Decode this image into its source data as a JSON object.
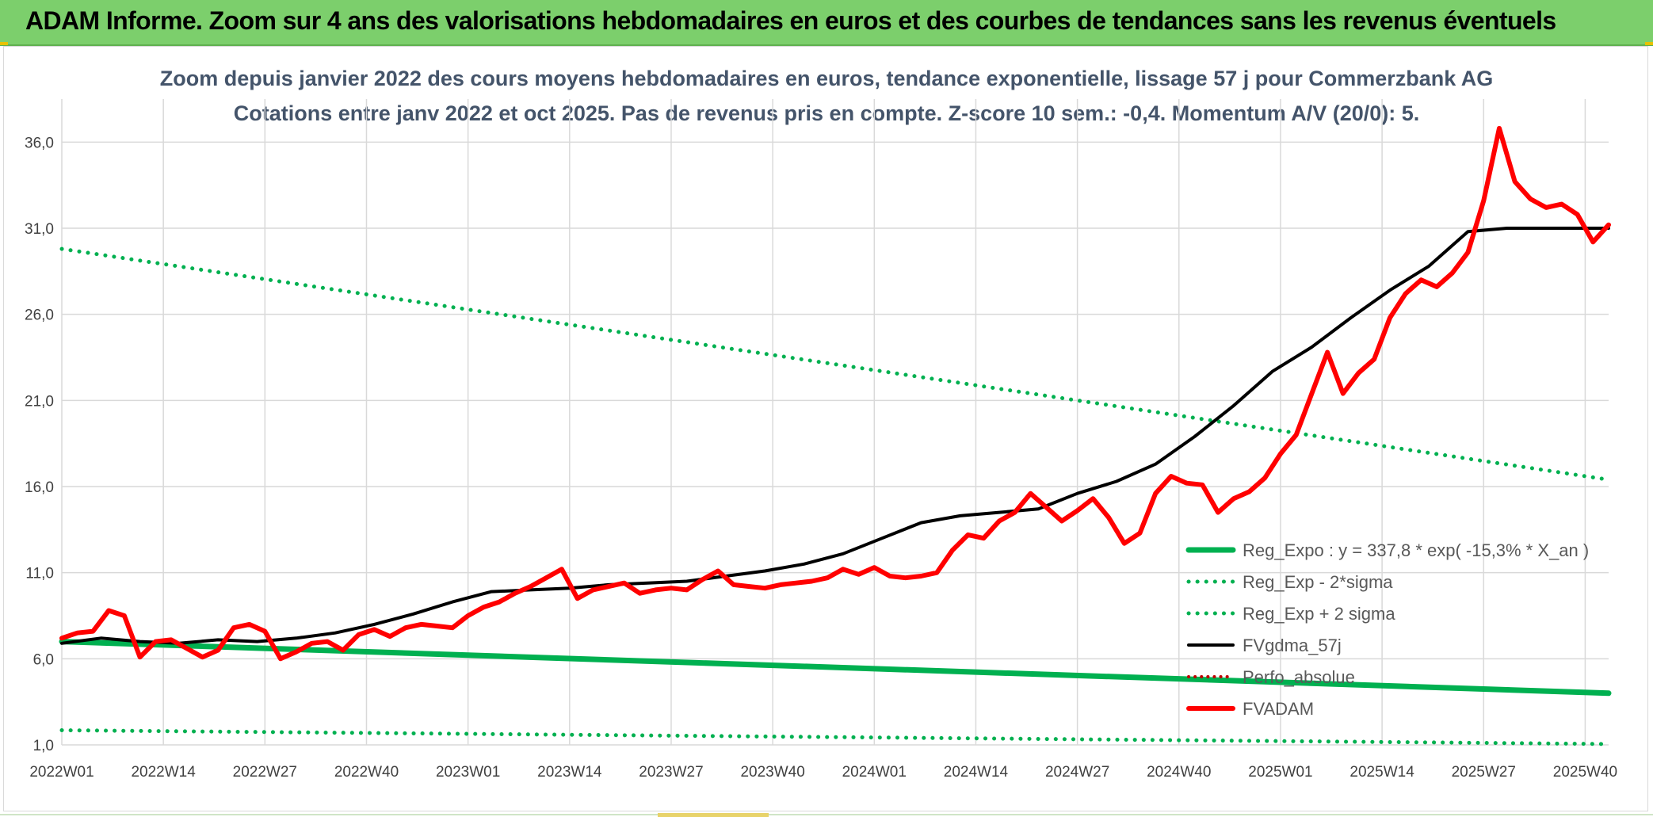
{
  "header": {
    "title": "ADAM Informe. Zoom sur 4 ans des valorisations hebdomadaires en euros et des courbes de tendances sans les revenus éventuels"
  },
  "chart_data": {
    "type": "line",
    "title": "Zoom depuis janvier 2022 des cours moyens hebdomadaires en euros, tendance exponentielle, lissage 57 j pour Commerzbank AG",
    "subtitle": "Cotations entre janv 2022 et oct 2025. Pas de revenus pris en compte. Z-score 10 sem.: -0,4. Momentum A/V (20/0): 5.",
    "xlabel": "",
    "ylabel": "",
    "ylim": [
      1.0,
      38.5
    ],
    "yticks": [
      "36,0",
      "31,0",
      "26,0",
      "21,0",
      "16,0",
      "11,0",
      "6,0",
      "1,0"
    ],
    "ytick_values": [
      36,
      31,
      26,
      21,
      16,
      11,
      6,
      1
    ],
    "xticks": [
      "2022W01",
      "2022W14",
      "2022W27",
      "2022W40",
      "2023W01",
      "2023W14",
      "2023W27",
      "2023W40",
      "2024W01",
      "2024W14",
      "2024W27",
      "2024W40",
      "2025W01",
      "2025W14",
      "2025W27",
      "2025W40"
    ],
    "week_count": 199,
    "grid": true,
    "legend_position": "right",
    "colors": {
      "reg_expo": "#00b050",
      "reg_sigma": "#00b050",
      "fvgdma": "#000000",
      "perfo": "#c00000",
      "fvadam": "#ff0000"
    },
    "series": [
      {
        "name": "Reg_Expo : y = 337,8 * exp( -15,3% *  X_an )",
        "style": "solid-thick",
        "x": [
          0,
          198
        ],
        "values": [
          7.0,
          4.0
        ]
      },
      {
        "name": "Reg_Exp - 2*sigma",
        "style": "dotted",
        "x": [
          0,
          198
        ],
        "values": [
          1.85,
          1.05
        ]
      },
      {
        "name": "Reg_Exp + 2 sigma",
        "style": "dotted",
        "x": [
          0,
          198
        ],
        "values": [
          29.8,
          16.4
        ]
      },
      {
        "name": "FVgdma_57j",
        "style": "solid",
        "x": [
          0,
          5,
          10,
          15,
          20,
          25,
          30,
          35,
          40,
          45,
          50,
          55,
          60,
          65,
          70,
          75,
          80,
          85,
          90,
          95,
          100,
          105,
          110,
          115,
          120,
          125,
          130,
          135,
          140,
          145,
          150,
          155,
          160,
          165,
          170,
          175,
          180,
          185,
          190,
          195,
          198
        ],
        "values": [
          6.9,
          7.2,
          7.0,
          6.9,
          7.1,
          7.0,
          7.2,
          7.5,
          8.0,
          8.6,
          9.3,
          9.9,
          10.0,
          10.1,
          10.3,
          10.4,
          10.5,
          10.8,
          11.1,
          11.5,
          12.1,
          13.0,
          13.9,
          14.3,
          14.5,
          14.7,
          15.6,
          16.3,
          17.3,
          18.9,
          20.7,
          22.7,
          24.1,
          25.8,
          27.4,
          28.8,
          30.8,
          31.0,
          31.0,
          31.0,
          31.0
        ]
      },
      {
        "name": "Perfo_absolue",
        "style": "dotted",
        "x": [],
        "values": []
      },
      {
        "name": "FVADAM",
        "style": "solid-thick",
        "x": [
          0,
          2,
          4,
          6,
          8,
          10,
          12,
          14,
          16,
          18,
          20,
          22,
          24,
          26,
          28,
          30,
          32,
          34,
          36,
          38,
          40,
          42,
          44,
          46,
          48,
          50,
          52,
          54,
          56,
          58,
          60,
          62,
          64,
          66,
          68,
          70,
          72,
          74,
          76,
          78,
          80,
          82,
          84,
          86,
          88,
          90,
          92,
          94,
          96,
          98,
          100,
          102,
          104,
          106,
          108,
          110,
          112,
          114,
          116,
          118,
          120,
          122,
          124,
          126,
          128,
          130,
          132,
          134,
          136,
          138,
          140,
          142,
          144,
          146,
          148,
          150,
          152,
          154,
          156,
          158,
          160,
          162,
          164,
          166,
          168,
          170,
          172,
          174,
          176,
          178,
          180,
          182,
          184,
          186,
          188,
          190,
          192,
          194,
          196,
          198
        ],
        "values": [
          7.2,
          7.5,
          7.6,
          8.8,
          8.5,
          6.1,
          7.0,
          7.1,
          6.6,
          6.1,
          6.5,
          7.8,
          8.0,
          7.6,
          6.0,
          6.4,
          6.9,
          7.0,
          6.5,
          7.4,
          7.7,
          7.3,
          7.8,
          8.0,
          7.9,
          7.8,
          8.5,
          9.0,
          9.3,
          9.8,
          10.2,
          10.7,
          11.2,
          9.5,
          10.0,
          10.2,
          10.4,
          9.8,
          10.0,
          10.1,
          10.0,
          10.6,
          11.1,
          10.3,
          10.2,
          10.1,
          10.3,
          10.4,
          10.5,
          10.7,
          11.2,
          10.9,
          11.3,
          10.8,
          10.7,
          10.8,
          11.0,
          12.3,
          13.2,
          13.0,
          14.0,
          14.5,
          15.6,
          14.8,
          14.0,
          14.6,
          15.3,
          14.2,
          12.7,
          13.3,
          15.6,
          16.6,
          16.2,
          16.1,
          14.5,
          15.3,
          15.7,
          16.5,
          17.9,
          19.0,
          21.4,
          23.8,
          21.4,
          22.6,
          23.4,
          25.8,
          27.2,
          28.0,
          27.6,
          28.4,
          29.6,
          32.6,
          36.8,
          33.7,
          32.7,
          32.2,
          32.4,
          31.8,
          30.2,
          31.2
        ]
      }
    ]
  }
}
